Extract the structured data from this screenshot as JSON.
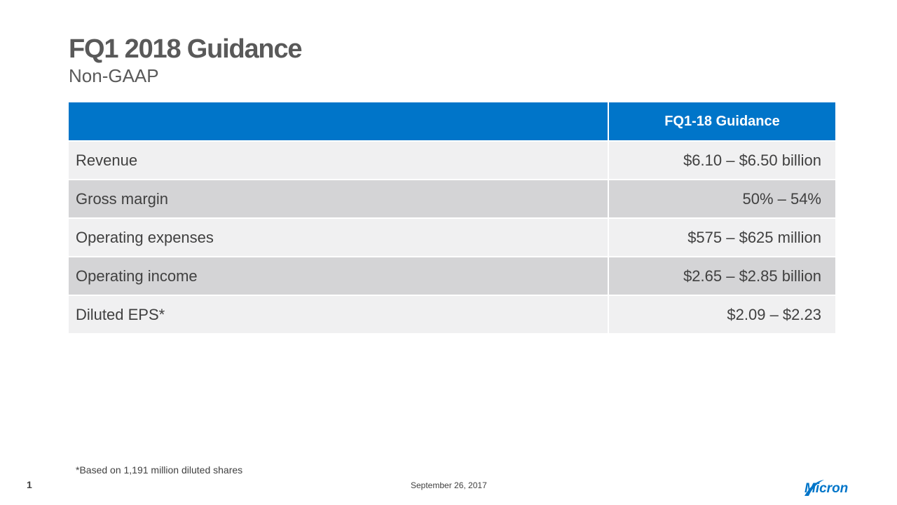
{
  "slide": {
    "title": "FQ1 2018 Guidance",
    "subtitle": "Non-GAAP",
    "footnote": "*Based on 1,191 million diluted shares",
    "page_number": "1",
    "date": "September 26, 2017",
    "logo_text": "Micron"
  },
  "table": {
    "header_label": "",
    "header_value": "FQ1-18 Guidance",
    "rows": [
      {
        "label": "Revenue",
        "value": "$6.10 – $6.50 billion"
      },
      {
        "label": "Gross margin",
        "value": "50% – 54%"
      },
      {
        "label": "Operating expenses",
        "value": "$575 – $625 million"
      },
      {
        "label": "Operating income",
        "value": "$2.65 – $2.85 billion"
      },
      {
        "label": "Diluted EPS*",
        "value": "$2.09 – $2.23"
      }
    ]
  },
  "colors": {
    "header_bg": "#0075c9",
    "row_light": "#f0f0f1",
    "row_dark": "#d4d4d6",
    "title_text": "#595959",
    "logo_blue": "#0075c9"
  }
}
